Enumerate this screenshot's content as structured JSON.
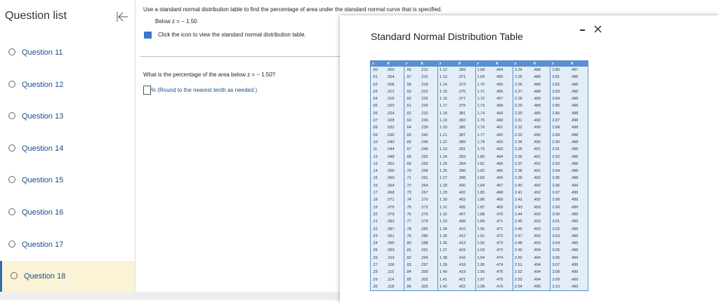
{
  "sidebar": {
    "title": "Question list",
    "questions": [
      "Question 11",
      "Question 12",
      "Question 13",
      "Question 14",
      "Question 15",
      "Question 16",
      "Question 17",
      "Question 18"
    ]
  },
  "instructions": {
    "text": "Use a standard normal distribution table to find the percentage of area under the standard normal curve that is specified.",
    "subtext": "Below z = − 1.50",
    "link": "Click the icon to view the standard normal distribution table."
  },
  "question": {
    "text": "What is the percentage of the area below z = − 1.50?",
    "hint": "% (Round to the nearest tenth as needed.)"
  },
  "modal": {
    "title": "Standard Normal Distribution Table"
  },
  "table": {
    "header": [
      "z",
      "A",
      "z",
      "A",
      "z",
      "A",
      "z",
      "A",
      "z",
      "A",
      "z",
      "A"
    ],
    "rows": [
      [
        ".00",
        ".000",
        ".56",
        ".212",
        "1.12",
        ".369",
        "1.68",
        ".454",
        "2.24",
        ".488",
        "2.80",
        ".497"
      ],
      [
        ".01",
        ".004",
        ".57",
        ".216",
        "1.13",
        ".371",
        "1.69",
        ".455",
        "2.25",
        ".488",
        "2.81",
        ".498"
      ],
      [
        ".02",
        ".008",
        ".58",
        ".219",
        "1.14",
        ".373",
        "1.70",
        ".455",
        "2.26",
        ".488",
        "2.82",
        ".498"
      ],
      [
        ".03",
        ".012",
        ".59",
        ".222",
        "1.15",
        ".375",
        "1.71",
        ".456",
        "2.27",
        ".488",
        "2.83",
        ".498"
      ],
      [
        ".04",
        ".016",
        ".60",
        ".226",
        "1.16",
        ".377",
        "1.72",
        ".457",
        "2.28",
        ".489",
        "2.84",
        ".498"
      ],
      [
        ".05",
        ".020",
        ".61",
        ".229",
        "1.17",
        ".379",
        "1.73",
        ".458",
        "2.29",
        ".489",
        "2.85",
        ".498"
      ],
      [
        ".06",
        ".024",
        ".62",
        ".232",
        "1.18",
        ".381",
        "1.74",
        ".459",
        "2.30",
        ".489",
        "2.86",
        ".498"
      ],
      [
        ".07",
        ".028",
        ".63",
        ".236",
        "1.19",
        ".383",
        "1.75",
        ".460",
        "2.31",
        ".490",
        "2.87",
        ".498"
      ],
      [
        ".08",
        ".032",
        ".64",
        ".239",
        "1.20",
        ".385",
        "1.76",
        ".461",
        "2.32",
        ".490",
        "2.88",
        ".498"
      ],
      [
        ".09",
        ".036",
        ".65",
        ".242",
        "1.21",
        ".387",
        "1.77",
        ".462",
        "2.33",
        ".490",
        "2.89",
        ".498"
      ],
      [
        ".10",
        ".040",
        ".66",
        ".245",
        "1.22",
        ".389",
        "1.78",
        ".463",
        "2.34",
        ".490",
        "2.90",
        ".498"
      ],
      [
        ".11",
        ".044",
        ".67",
        ".249",
        "1.23",
        ".391",
        "1.79",
        ".463",
        "2.35",
        ".491",
        "2.91",
        ".498"
      ],
      [
        ".12",
        ".048",
        ".68",
        ".252",
        "1.24",
        ".393",
        "1.80",
        ".464",
        "2.36",
        ".491",
        "2.92",
        ".498"
      ],
      [
        ".13",
        ".052",
        ".69",
        ".255",
        "1.25",
        ".394",
        "1.81",
        ".465",
        "2.37",
        ".491",
        "2.93",
        ".498"
      ],
      [
        ".14",
        ".056",
        ".70",
        ".258",
        "1.26",
        ".396",
        "1.82",
        ".466",
        "2.38",
        ".491",
        "2.94",
        ".498"
      ],
      [
        ".15",
        ".060",
        ".71",
        ".261",
        "1.27",
        ".398",
        "1.83",
        ".466",
        "2.39",
        ".492",
        "2.95",
        ".498"
      ],
      [
        ".16",
        ".064",
        ".72",
        ".264",
        "1.28",
        ".400",
        "1.84",
        ".467",
        "2.40",
        ".492",
        "2.96",
        ".499"
      ],
      [
        ".17",
        ".068",
        ".73",
        ".267",
        "1.29",
        ".402",
        "1.85",
        ".468",
        "2.41",
        ".492",
        "2.97",
        ".499"
      ],
      [
        ".18",
        ".071",
        ".74",
        ".270",
        "1.30",
        ".403",
        "1.86",
        ".469",
        "2.42",
        ".492",
        "2.98",
        ".499"
      ],
      [
        ".19",
        ".075",
        ".75",
        ".273",
        "1.31",
        ".405",
        "1.87",
        ".469",
        "2.43",
        ".493",
        "2.99",
        ".499"
      ],
      [
        ".20",
        ".079",
        ".76",
        ".276",
        "1.32",
        ".407",
        "1.88",
        ".470",
        "2.44",
        ".493",
        "3.00",
        ".499"
      ],
      [
        ".21",
        ".083",
        ".77",
        ".279",
        "1.33",
        ".408",
        "1.89",
        ".471",
        "2.45",
        ".493",
        "3.01",
        ".499"
      ],
      [
        ".22",
        ".087",
        ".78",
        ".282",
        "1.34",
        ".410",
        "1.90",
        ".471",
        "2.46",
        ".493",
        "3.02",
        ".499"
      ],
      [
        ".23",
        ".091",
        ".79",
        ".285",
        "1.35",
        ".412",
        "1.91",
        ".472",
        "2.47",
        ".493",
        "3.03",
        ".499"
      ],
      [
        ".24",
        ".095",
        ".80",
        ".288",
        "1.36",
        ".413",
        "1.92",
        ".473",
        "2.48",
        ".493",
        "3.04",
        ".499"
      ],
      [
        ".25",
        ".099",
        ".81",
        ".291",
        "1.37",
        ".415",
        "1.93",
        ".473",
        "2.49",
        ".494",
        "3.05",
        ".499"
      ],
      [
        ".26",
        ".103",
        ".82",
        ".294",
        "1.38",
        ".416",
        "1.94",
        ".474",
        "2.50",
        ".494",
        "3.06",
        ".499"
      ],
      [
        ".27",
        ".106",
        ".83",
        ".297",
        "1.39",
        ".418",
        "1.95",
        ".474",
        "2.51",
        ".494",
        "3.07",
        ".499"
      ],
      [
        ".28",
        ".110",
        ".84",
        ".300",
        "1.40",
        ".419",
        "1.96",
        ".475",
        "2.52",
        ".494",
        "3.08",
        ".499"
      ],
      [
        ".29",
        ".114",
        ".85",
        ".302",
        "1.41",
        ".421",
        "1.97",
        ".476",
        "2.53",
        ".494",
        "3.09",
        ".499"
      ],
      [
        ".30",
        ".118",
        ".86",
        ".305",
        "1.42",
        ".422",
        "1.98",
        ".476",
        "2.54",
        ".495",
        "3.10",
        ".499"
      ]
    ]
  }
}
